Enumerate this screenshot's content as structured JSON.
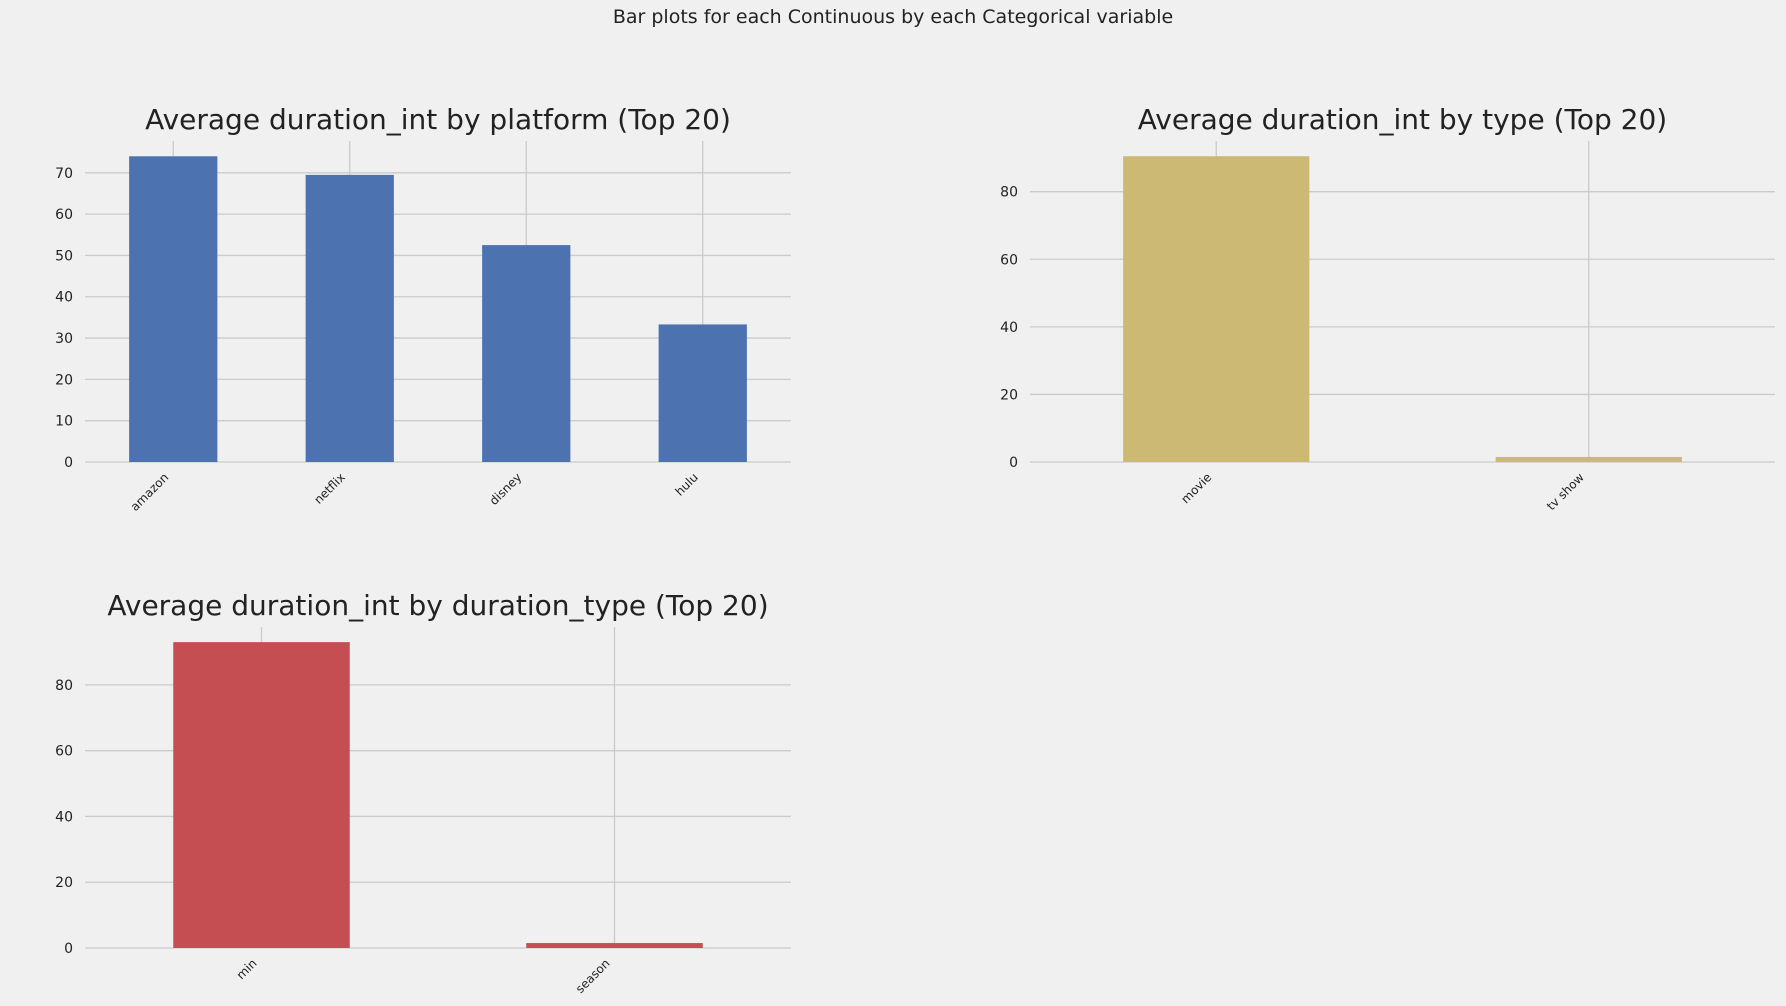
{
  "suptitle": "Bar plots for each Continuous by each Categorical variable",
  "chart_data": [
    {
      "type": "bar",
      "title": "Average duration_int by platform (Top 20)",
      "categories": [
        "amazon",
        "netflix",
        "disney",
        "hulu"
      ],
      "values": [
        74,
        69.5,
        52.5,
        33.3
      ],
      "yticks": [
        0,
        10,
        20,
        30,
        40,
        50,
        60,
        70
      ],
      "ylim": [
        0,
        77.7
      ],
      "grid": true,
      "color": "#4c72b0"
    },
    {
      "type": "bar",
      "title": "Average duration_int by type (Top 20)",
      "categories": [
        "movie",
        "tv show"
      ],
      "values": [
        90.5,
        1.5
      ],
      "yticks": [
        0,
        20,
        40,
        60,
        80
      ],
      "ylim": [
        0,
        95
      ],
      "grid": true,
      "color": "#ccb974"
    },
    {
      "type": "bar",
      "title": "Average duration_int by duration_type (Top 20)",
      "categories": [
        "min",
        "season"
      ],
      "values": [
        93,
        1.5
      ],
      "yticks": [
        0,
        20,
        40,
        60,
        80
      ],
      "ylim": [
        0,
        97.6
      ],
      "grid": true,
      "color": "#c44e52"
    }
  ]
}
